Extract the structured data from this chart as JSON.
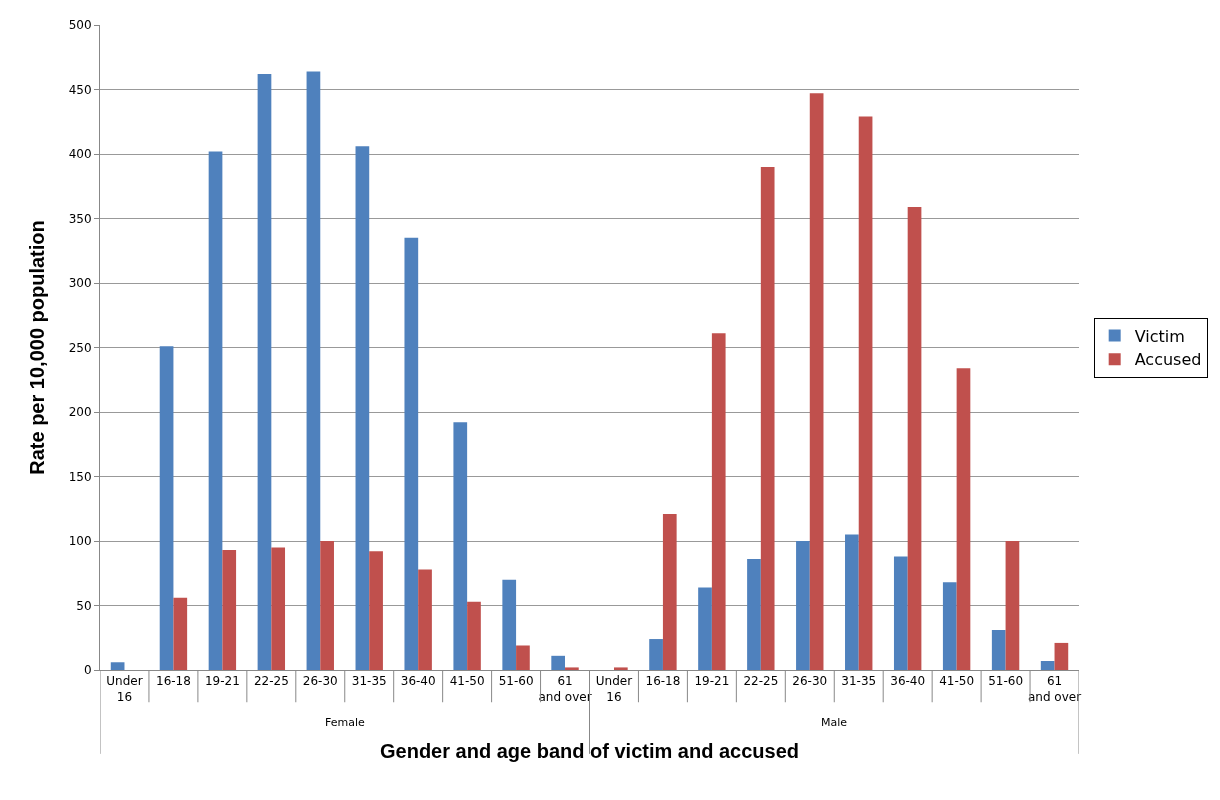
{
  "chart_data": {
    "type": "bar",
    "ylabel": "Rate per 10,000 population",
    "xlabel": "Gender and age band of victim and accused",
    "categories": [
      "Under 16",
      "16-18",
      "19-21",
      "22-25",
      "26-30",
      "31-35",
      "36-40",
      "41-50",
      "51-60",
      "61 and over",
      "Under 16",
      "16-18",
      "19-21",
      "22-25",
      "26-30",
      "31-35",
      "36-40",
      "41-50",
      "51-60",
      "61 and over"
    ],
    "annotations": [
      "Female",
      "Male"
    ],
    "series": [
      {
        "name": "Victim",
        "color": "#4f81bd",
        "values": [
          6,
          251,
          402,
          462,
          464,
          406,
          335,
          192,
          70,
          11,
          0,
          24,
          64,
          86,
          100,
          105,
          88,
          68,
          31,
          7
        ]
      },
      {
        "name": "Accused",
        "color": "#c0504d",
        "values": [
          0,
          56,
          93,
          95,
          100,
          92,
          78,
          53,
          19,
          2,
          2,
          121,
          261,
          390,
          447,
          429,
          359,
          234,
          100,
          21
        ]
      }
    ],
    "ylim": [
      0,
      500
    ],
    "yticks": [
      0,
      50,
      100,
      150,
      200,
      250,
      300,
      350,
      400,
      450,
      500
    ],
    "grid": "y",
    "legend": "right"
  }
}
